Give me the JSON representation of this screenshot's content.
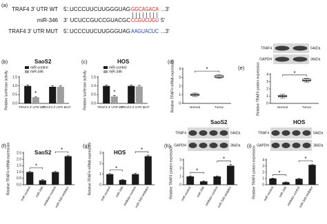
{
  "panel_a": {
    "label": "(a)",
    "rows": [
      {
        "name": "TRAF4 3' UTR WT",
        "start": "5'",
        "seq": "...UCCCUUCUUGGGUAG",
        "site": "GGCAGACA",
        "end": "...3'",
        "site_color": "#e0201b"
      },
      {
        "name": "miR-346",
        "start": "3'",
        "seq": "UCUCCGUCCGUACGC",
        "site": "CCGUCUGU",
        "end": "5'",
        "site_color": "#e0201b"
      },
      {
        "name": "TRAF4 3' UTR MUT",
        "start": "5'",
        "seq": "...UCCCUUCUUGGGUAG",
        "site": "AAGUACUC",
        "end": "...3'",
        "site_color": "#1f3fbf"
      }
    ]
  },
  "chart_data": [
    {
      "type": "bar",
      "panel_label": "(b)",
      "title": "SaoS2",
      "y_label": "Relative luciferase activity",
      "categories": [
        "TRAF4 3' UTR WT",
        "TRAF4 3' UTR MUT"
      ],
      "series": [
        {
          "name": "miR-control",
          "color": "#1a1a1a",
          "values": [
            1.0,
            0.95
          ],
          "errors": [
            0.06,
            0.06
          ]
        },
        {
          "name": "miR-346",
          "color": "#9e9e9e",
          "values": [
            0.35,
            0.95
          ],
          "errors": [
            0.04,
            0.06
          ]
        }
      ],
      "ylim": [
        0,
        1.5
      ],
      "yticks": [
        {
          "value": 0,
          "label": "0.0"
        },
        0.5,
        {
          "value": 1,
          "label": "1.0"
        },
        1.5
      ],
      "annotations": [
        "*"
      ]
    },
    {
      "type": "bar",
      "panel_label": "(c)",
      "title": "HOS",
      "y_label": "Relative luciferase activity",
      "categories": [
        "TRAF4 3' UTR WT",
        "TRAF4 3' UTR MUT"
      ],
      "series": [
        {
          "name": "miR-control",
          "color": "#1a1a1a",
          "values": [
            1.0,
            1.0
          ],
          "errors": [
            0.06,
            0.06
          ]
        },
        {
          "name": "miR-346",
          "color": "#9e9e9e",
          "values": [
            0.4,
            0.97
          ],
          "errors": [
            0.05,
            0.06
          ]
        }
      ],
      "ylim": [
        0,
        1.5
      ],
      "yticks": [
        {
          "value": 0,
          "label": "0.0"
        },
        0.5,
        {
          "value": 1,
          "label": "1.0"
        },
        1.5
      ],
      "annotations": [
        "*"
      ]
    },
    {
      "type": "box",
      "panel_label": "(d)",
      "y_label": "Relative TRAF4 mRNA expression",
      "categories": [
        "Normal",
        "Tumor"
      ],
      "boxes": [
        {
          "min": 0.8,
          "q1": 0.9,
          "median": 1.0,
          "q3": 1.1,
          "max": 1.2
        },
        {
          "min": 2.9,
          "q1": 3.0,
          "median": 3.1,
          "q3": 3.25,
          "max": 3.35
        }
      ],
      "ylim": [
        0,
        4
      ],
      "yticks": [
        0,
        1,
        2,
        3,
        4
      ],
      "annotations": [
        "*"
      ]
    },
    {
      "type": "box",
      "panel_label": "(e)",
      "y_label": "Relative TRAF4 protein expression",
      "blot": {
        "bands": [
          "TRAF4",
          "GAPDH"
        ],
        "sizes": [
          "54kDa",
          "36kDa"
        ]
      },
      "categories": [
        "Normal",
        "Tumor"
      ],
      "boxes": [
        {
          "min": 0.75,
          "q1": 0.9,
          "median": 1.0,
          "q3": 1.1,
          "max": 1.25
        },
        {
          "min": 2.95,
          "q1": 3.1,
          "median": 3.2,
          "q3": 3.35,
          "max": 3.45
        }
      ],
      "ylim": [
        0,
        4
      ],
      "yticks": [
        0,
        1,
        2,
        3,
        4
      ],
      "annotations": [
        "*"
      ]
    },
    {
      "type": "bar",
      "panel_label": "(f)",
      "title": "SaoS2",
      "y_label": "Relative TRAF4 mRNA expression",
      "categories": [
        "miR-control",
        "miR-346",
        "inhibitor-control",
        "miR-346 inhibitor"
      ],
      "color": "#1a1a1a",
      "values": [
        1.0,
        0.35,
        1.0,
        2.25
      ],
      "errors": [
        0.06,
        0.05,
        0.06,
        0.08
      ],
      "ylim": [
        0,
        2.5
      ],
      "yticks": [
        {
          "value": 0,
          "label": "0.0"
        },
        0.5,
        {
          "value": 1,
          "label": "1.0"
        },
        1.5,
        {
          "value": 2,
          "label": "2.0"
        },
        2.5
      ],
      "annotations": [
        "*",
        "*"
      ]
    },
    {
      "type": "bar",
      "panel_label": "(g)",
      "title": "HOS",
      "y_label": "Relative TRAF4 mRNA expression",
      "categories": [
        "miR-control",
        "miR-346",
        "inhibitor-control",
        "miR-346 inhibitor"
      ],
      "color": "#1a1a1a",
      "values": [
        1.0,
        0.45,
        1.0,
        2.7
      ],
      "errors": [
        0.06,
        0.05,
        0.07,
        0.1
      ],
      "ylim": [
        0,
        3
      ],
      "yticks": [
        0,
        1,
        2,
        3
      ],
      "annotations": [
        "*",
        "*"
      ]
    },
    {
      "type": "bar",
      "panel_label": "(h)",
      "title": "SaoS2",
      "y_label": "Relative TRAF4 protein expression",
      "blot": {
        "bands": [
          "TRAF4",
          "GAPDH"
        ],
        "sizes": [
          "54kDa",
          "36kDa"
        ]
      },
      "categories": [
        "miR-control",
        "miR-346",
        "inhibitor-control",
        "miR-346 inhibitor"
      ],
      "color": "#1a1a1a",
      "values": [
        1.0,
        0.4,
        1.0,
        2.3
      ],
      "errors": [
        0.07,
        0.05,
        0.07,
        0.15
      ],
      "ylim": [
        0,
        3
      ],
      "yticks": [
        0,
        1,
        2,
        3
      ],
      "annotations": [
        "*",
        "*"
      ]
    },
    {
      "type": "bar",
      "panel_label": "(i)",
      "title": "HOS",
      "y_label": "Relative TRAF4 protein expression",
      "blot": {
        "bands": [
          "TRAF4",
          "GAPDH"
        ],
        "sizes": [
          "54kDa",
          "36kDa"
        ]
      },
      "categories": [
        "miR-control",
        "miR-346",
        "inhibitor-control",
        "miR-346 inhibitor"
      ],
      "color": "#1a1a1a",
      "values": [
        1.0,
        0.4,
        0.95,
        3.2
      ],
      "errors": [
        0.06,
        0.05,
        0.06,
        0.12
      ],
      "ylim": [
        0,
        4
      ],
      "yticks": [
        0,
        1,
        2,
        3,
        4
      ],
      "annotations": [
        "*",
        "*"
      ]
    }
  ]
}
